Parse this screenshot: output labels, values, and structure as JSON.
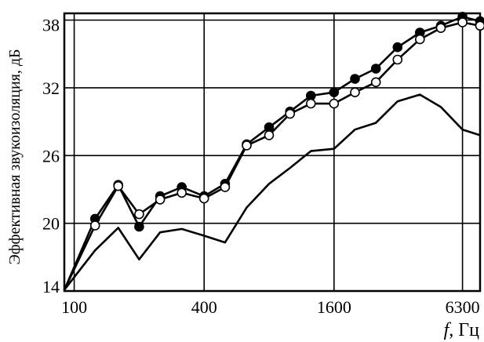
{
  "chart_data": {
    "type": "line",
    "title": "",
    "xlabel": "f, Гц",
    "xlabel_italic": "f",
    "xlabel_rest": ", Гц",
    "ylabel": "Эффективная звукоизоляция, дБ",
    "x_scale": "log",
    "xlim": [
      90,
      7600
    ],
    "ylim": [
      14,
      38.6
    ],
    "grid": true,
    "x_ticks": [
      100,
      400,
      1600,
      6300
    ],
    "x_tick_labels": [
      "100",
      "400",
      "1600",
      "6300"
    ],
    "y_ticks": [
      14,
      20,
      26,
      32,
      38
    ],
    "y_tick_labels": [
      "14",
      "20",
      "26",
      "32",
      "38"
    ],
    "x": [
      90,
      125,
      160,
      200,
      250,
      315,
      400,
      500,
      630,
      800,
      1000,
      1250,
      1600,
      2000,
      2500,
      3150,
      4000,
      5000,
      6300,
      7600
    ],
    "series": [
      {
        "marker": "filled-circle",
        "values": [
          14.1,
          20.4,
          23.4,
          19.7,
          22.4,
          23.2,
          22.4,
          23.5,
          27.0,
          28.5,
          29.9,
          31.3,
          31.6,
          32.8,
          33.7,
          35.6,
          36.9,
          37.5,
          38.3,
          37.9
        ]
      },
      {
        "marker": "open-circle",
        "values": [
          14.1,
          19.8,
          23.3,
          20.8,
          22.1,
          22.7,
          22.2,
          23.2,
          26.9,
          27.8,
          29.7,
          30.6,
          30.6,
          31.6,
          32.5,
          34.5,
          36.3,
          37.3,
          37.8,
          37.5
        ]
      },
      {
        "marker": "none",
        "values": [
          14.1,
          17.6,
          19.6,
          16.8,
          19.2,
          19.5,
          18.9,
          18.3,
          21.4,
          23.5,
          24.9,
          26.4,
          26.6,
          28.3,
          28.9,
          30.8,
          31.4,
          30.3,
          28.3,
          27.8
        ]
      }
    ]
  }
}
